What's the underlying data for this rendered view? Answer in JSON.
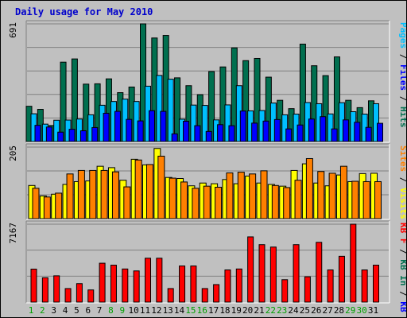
{
  "chart_data": [
    {
      "panel": "hits-files-pages",
      "type": "bar",
      "title": "Daily usage for May 2010",
      "categories": [
        "1",
        "2",
        "3",
        "4",
        "5",
        "6",
        "7",
        "8",
        "9",
        "10",
        "11",
        "12",
        "13",
        "14",
        "15",
        "16",
        "17",
        "18",
        "19",
        "20",
        "21",
        "22",
        "23",
        "24",
        "25",
        "26",
        "27",
        "28",
        "29",
        "30",
        "31"
      ],
      "weekend_categories": [
        "1",
        "2",
        "8",
        "9",
        "15",
        "16",
        "22",
        "23",
        "29",
        "30"
      ],
      "ymax_label": "691",
      "ylim": [
        0,
        691
      ],
      "grid": true,
      "legend": {
        "position": "right-vertical",
        "labels": [
          "Pages",
          "Files",
          "Hits"
        ],
        "separator": "/"
      },
      "series": [
        {
          "name": "Hits",
          "color": "#006f4f",
          "values": [
            207,
            189,
            94,
            466,
            485,
            337,
            339,
            368,
            287,
            320,
            691,
            608,
            623,
            374,
            328,
            275,
            411,
            438,
            550,
            475,
            488,
            378,
            242,
            193,
            572,
            445,
            387,
            497,
            242,
            199,
            239
          ]
        },
        {
          "name": "Files",
          "color": "#00bfff",
          "values": [
            163,
            102,
            125,
            126,
            132,
            157,
            213,
            235,
            249,
            235,
            325,
            388,
            366,
            131,
            214,
            212,
            127,
            215,
            328,
            180,
            182,
            226,
            157,
            161,
            229,
            222,
            162,
            228,
            175,
            161,
            222
          ]
        },
        {
          "name": "Pages",
          "color": "#0000ff",
          "values": [
            95,
            85,
            55,
            72,
            63,
            82,
            166,
            177,
            130,
            121,
            181,
            177,
            45,
            119,
            93,
            59,
            99,
            93,
            179,
            108,
            120,
            129,
            74,
            97,
            132,
            146,
            74,
            127,
            113,
            83,
            107
          ]
        }
      ]
    },
    {
      "panel": "visits-sites",
      "type": "bar",
      "categories": [
        "1",
        "2",
        "3",
        "4",
        "5",
        "6",
        "7",
        "8",
        "9",
        "10",
        "11",
        "12",
        "13",
        "14",
        "15",
        "16",
        "17",
        "18",
        "19",
        "20",
        "21",
        "22",
        "23",
        "24",
        "25",
        "26",
        "27",
        "28",
        "29",
        "30",
        "31"
      ],
      "ymax_label": "205",
      "ylim": [
        0,
        205
      ],
      "grid": true,
      "legend": {
        "position": "right-vertical",
        "labels": [
          "Sites",
          "Visits"
        ],
        "separator": "/"
      },
      "series": [
        {
          "name": "Visits",
          "color": "#ffff00",
          "values": [
            95,
            65,
            70,
            98,
            106,
            108,
            150,
            146,
            110,
            170,
            154,
            201,
            118,
            115,
            94,
            102,
            100,
            112,
            100,
            122,
            102,
            98,
            93,
            138,
            157,
            102,
            94,
            125,
            106,
            129,
            130
          ]
        },
        {
          "name": "Sites",
          "color": "#ff8000",
          "values": [
            87,
            62,
            73,
            128,
            138,
            138,
            138,
            134,
            91,
            168,
            155,
            179,
            116,
            105,
            87,
            93,
            90,
            131,
            133,
            128,
            137,
            95,
            89,
            110,
            172,
            135,
            130,
            150,
            107,
            106,
            106
          ]
        }
      ]
    },
    {
      "panel": "kbytes",
      "type": "bar",
      "categories": [
        "1",
        "2",
        "3",
        "4",
        "5",
        "6",
        "7",
        "8",
        "9",
        "10",
        "11",
        "12",
        "13",
        "14",
        "15",
        "16",
        "17",
        "18",
        "19",
        "20",
        "21",
        "22",
        "23",
        "24",
        "25",
        "26",
        "27",
        "28",
        "29",
        "30",
        "31"
      ],
      "ymax_label": "7167",
      "ylim": [
        0,
        7167
      ],
      "grid": true,
      "legend": {
        "position": "right-vertical",
        "labels": [
          "KB F",
          "KB In",
          "KB Out"
        ],
        "separator": "/"
      },
      "series": [
        {
          "name": "KB F",
          "color": "#ff0000",
          "values": [
            3034,
            2240,
            2420,
            1246,
            1700,
            1120,
            3578,
            3400,
            3047,
            2870,
            4038,
            4038,
            1246,
            3324,
            3324,
            1246,
            1611,
            2960,
            3047,
            6000,
            5286,
            5064,
            2063,
            5286,
            2330,
            5500,
            2960,
            4215,
            7167,
            2960,
            3400
          ]
        }
      ]
    }
  ]
}
